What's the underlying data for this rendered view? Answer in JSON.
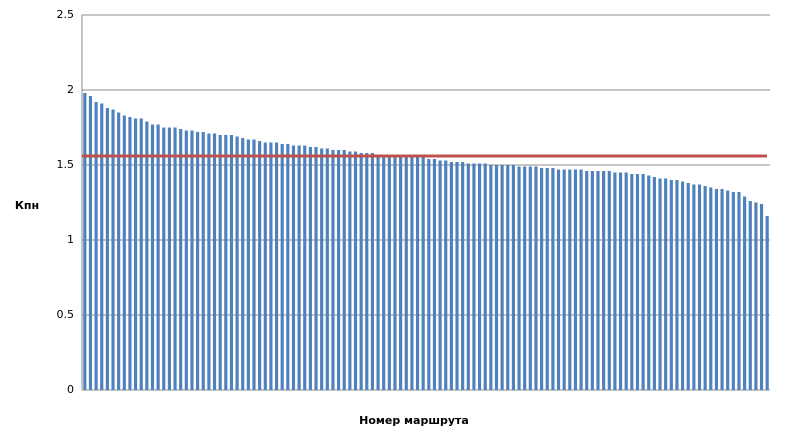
{
  "chart_data": {
    "type": "bar",
    "x_label": "Номер маршрута",
    "y_label": "Кпн",
    "categories": [
      null,
      null,
      null,
      null,
      null,
      null,
      null,
      null,
      null,
      null,
      null,
      null,
      null,
      null,
      null,
      null,
      null,
      null,
      null,
      null,
      null,
      null,
      null,
      null,
      null,
      null,
      null,
      null,
      null,
      null,
      null,
      null,
      null,
      null,
      null,
      null,
      null,
      null,
      null,
      null,
      null,
      null,
      null,
      null,
      null,
      null,
      null,
      null,
      null,
      null,
      null,
      null,
      null,
      null,
      null,
      null,
      null,
      null,
      null,
      null,
      null,
      null,
      null,
      null,
      null,
      null,
      null,
      null,
      null,
      null,
      null,
      null,
      null,
      null,
      null,
      null,
      null,
      null,
      null,
      null,
      null,
      null,
      null,
      null,
      null,
      null,
      null,
      null,
      null,
      null,
      null,
      null,
      null,
      null,
      null,
      null,
      null,
      null,
      null,
      null,
      null,
      null,
      null,
      null,
      null,
      null,
      null,
      null,
      null,
      null,
      null,
      null,
      null,
      null,
      null,
      null,
      null,
      null,
      null,
      null,
      null,
      null
    ],
    "values": [
      1.98,
      1.96,
      1.92,
      1.91,
      1.88,
      1.87,
      1.85,
      1.83,
      1.82,
      1.81,
      1.81,
      1.79,
      1.77,
      1.77,
      1.75,
      1.75,
      1.75,
      1.74,
      1.73,
      1.73,
      1.72,
      1.72,
      1.71,
      1.71,
      1.7,
      1.7,
      1.7,
      1.69,
      1.68,
      1.67,
      1.67,
      1.66,
      1.65,
      1.65,
      1.65,
      1.64,
      1.64,
      1.63,
      1.63,
      1.63,
      1.62,
      1.62,
      1.61,
      1.61,
      1.6,
      1.6,
      1.6,
      1.59,
      1.59,
      1.58,
      1.58,
      1.58,
      1.57,
      1.57,
      1.57,
      1.57,
      1.56,
      1.56,
      1.56,
      1.55,
      1.55,
      1.54,
      1.54,
      1.53,
      1.53,
      1.52,
      1.52,
      1.52,
      1.51,
      1.51,
      1.51,
      1.51,
      1.5,
      1.5,
      1.5,
      1.5,
      1.5,
      1.49,
      1.49,
      1.49,
      1.49,
      1.48,
      1.48,
      1.48,
      1.47,
      1.47,
      1.47,
      1.47,
      1.47,
      1.46,
      1.46,
      1.46,
      1.46,
      1.46,
      1.45,
      1.45,
      1.45,
      1.44,
      1.44,
      1.44,
      1.43,
      1.42,
      1.41,
      1.41,
      1.4,
      1.4,
      1.39,
      1.38,
      1.37,
      1.37,
      1.36,
      1.35,
      1.34,
      1.34,
      1.33,
      1.32,
      1.32,
      1.29,
      1.26,
      1.25,
      1.24,
      1.16
    ],
    "color": "#4f81bd",
    "reference_line": {
      "value": 1.56,
      "color": "#c0504d"
    },
    "ylim": [
      0,
      2.5
    ],
    "yticks": [
      0,
      0.5,
      1,
      1.5,
      2,
      2.5
    ],
    "grid": true
  }
}
